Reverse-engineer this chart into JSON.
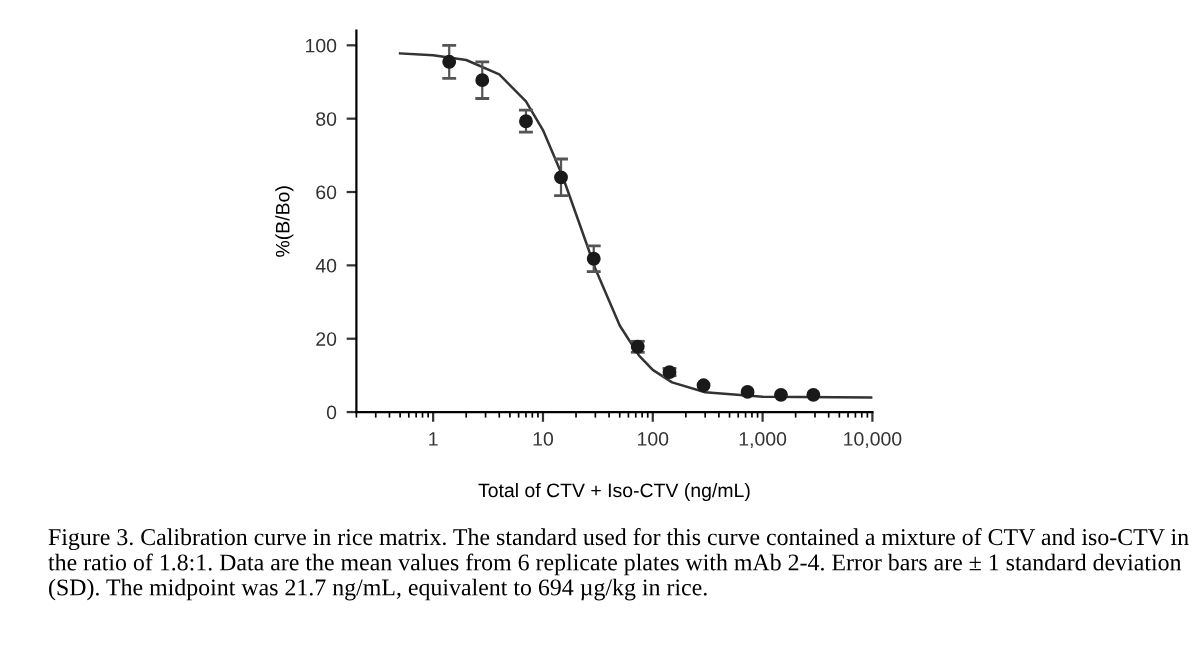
{
  "chart_data": {
    "type": "scatter",
    "xlabel": "Total of CTV + Iso-CTV (ng/mL)",
    "ylabel": "%(B/Bo)",
    "log": "x",
    "xlim": [
      0.2,
      10000
    ],
    "xticks": [
      1,
      10,
      100,
      {
        "value": 1000,
        "label": "1,000"
      },
      {
        "value": 10000,
        "label": "10,000"
      }
    ],
    "ylim": [
      0,
      104
    ],
    "yticks": [
      0,
      20,
      40,
      60,
      80,
      100
    ],
    "grid": false,
    "legend": false,
    "series": [
      {
        "type": "line",
        "color": "#333333",
        "marker": "none",
        "line_style": "solid",
        "x": [
          0.5,
          1,
          2,
          4,
          7,
          10,
          15,
          21.7,
          30,
          50,
          75,
          100,
          150,
          300,
          1000,
          10000
        ],
        "values": [
          97.8,
          97.3,
          96.0,
          92.1,
          84.7,
          76.9,
          64.5,
          51,
          39.1,
          23.6,
          15.4,
          11.5,
          8.1,
          5.4,
          4.2,
          4.0
        ]
      },
      {
        "color": "#1a1a1a",
        "marker": "circle",
        "x": [
          1.4,
          2.8,
          7,
          14.6,
          29,
          73,
          142,
          290,
          730,
          1470,
          2900
        ],
        "values": [
          95.5,
          90.5,
          79.3,
          64,
          41.8,
          17.8,
          10.9,
          7.3,
          5.5,
          4.7,
          4.7
        ],
        "errors": [
          4.5,
          5,
          3,
          5,
          3.5,
          1.5,
          1,
          null,
          null,
          null,
          null
        ]
      }
    ],
    "annotations": [
      "Figure 3. Calibration curve in rice matrix. The standard used for this curve contained a mixture of CTV and iso-CTV in the ratio of 1.8:1. Data are the mean values from 6 replicate plates with mAb 2-4. Error bars are ± 1 standard deviation (SD). The midpoint was 21.7 ng/mL, equivalent to 694 µg/kg in rice."
    ]
  }
}
